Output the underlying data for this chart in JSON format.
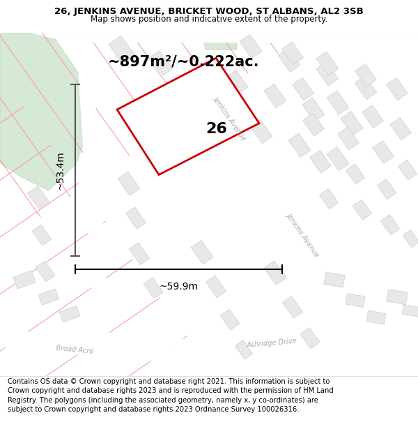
{
  "title_line1": "26, JENKINS AVENUE, BRICKET WOOD, ST ALBANS, AL2 3SB",
  "title_line2": "Map shows position and indicative extent of the property.",
  "area_label": "~897m²/~0.222ac.",
  "number_label": "26",
  "width_label": "~59.9m",
  "height_label": "~53.4m",
  "footer_text": "Contains OS data © Crown copyright and database right 2021. This information is subject to Crown copyright and database rights 2023 and is reproduced with the permission of HM Land Registry. The polygons (including the associated geometry, namely x, y co-ordinates) are subject to Crown copyright and database rights 2023 Ordnance Survey 100026316.",
  "bg_color": "#ffffff",
  "map_bg": "#ffffff",
  "parcel_line_color": "#f5a0a0",
  "parcel_line_lw": 0.8,
  "building_fill": "#e8e8e8",
  "building_edge": "#d0d0d0",
  "building_lw": 0.5,
  "green_fill": "#d6e8d6",
  "green_edge": "#c0d8c0",
  "road_label_color": "#aaaaaa",
  "plot_edge": "#cc0000",
  "plot_lw": 2.0,
  "dim_line_color": "#444444",
  "title_fontsize": 9.5,
  "subtitle_fontsize": 8.5,
  "area_fontsize": 15,
  "number_fontsize": 16,
  "dim_fontsize": 10,
  "road_label_fontsize": 7,
  "footer_fontsize": 7.2
}
